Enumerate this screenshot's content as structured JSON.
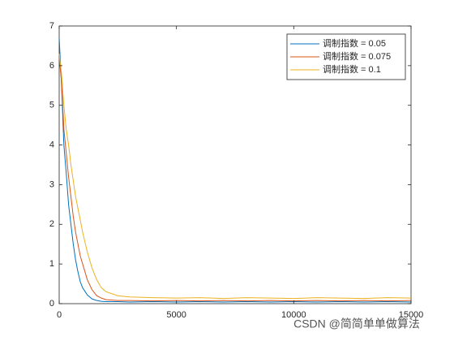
{
  "chart_data": {
    "type": "line",
    "x": [
      0,
      100,
      200,
      300,
      400,
      500,
      600,
      700,
      800,
      900,
      1000,
      1200,
      1400,
      1600,
      1800,
      2000,
      2500,
      3000,
      4000,
      5000,
      6000,
      7000,
      8000,
      9000,
      10000,
      11000,
      12000,
      13000,
      14000,
      15000
    ],
    "series": [
      {
        "name": "调制指数 = 0.05",
        "color": "#0072bd",
        "values": [
          6.7,
          5.5,
          4.0,
          3.3,
          2.5,
          2.0,
          1.5,
          1.1,
          0.8,
          0.55,
          0.4,
          0.22,
          0.12,
          0.08,
          0.06,
          0.05,
          0.05,
          0.04,
          0.05,
          0.04,
          0.05,
          0.04,
          0.05,
          0.04,
          0.05,
          0.04,
          0.05,
          0.04,
          0.05,
          0.04
        ]
      },
      {
        "name": "调制指数 = 0.075",
        "color": "#d95319",
        "values": [
          6.2,
          5.6,
          4.4,
          3.8,
          3.2,
          2.7,
          2.2,
          1.8,
          1.5,
          1.2,
          1.0,
          0.6,
          0.35,
          0.2,
          0.14,
          0.1,
          0.08,
          0.08,
          0.07,
          0.08,
          0.07,
          0.08,
          0.07,
          0.08,
          0.07,
          0.08,
          0.07,
          0.08,
          0.07,
          0.08
        ]
      },
      {
        "name": "调制指数 = 0.1",
        "color": "#edb120",
        "values": [
          6.3,
          5.8,
          5.0,
          4.4,
          4.0,
          3.5,
          3.1,
          2.7,
          2.4,
          2.1,
          1.8,
          1.3,
          0.9,
          0.6,
          0.4,
          0.3,
          0.2,
          0.17,
          0.15,
          0.14,
          0.15,
          0.13,
          0.15,
          0.14,
          0.13,
          0.15,
          0.14,
          0.13,
          0.15,
          0.14
        ]
      }
    ],
    "xlim": [
      0,
      15000
    ],
    "xticks": [
      0,
      5000,
      10000,
      15000
    ],
    "ylim": [
      0,
      7
    ],
    "yticks": [
      0,
      1,
      2,
      3,
      4,
      5,
      6,
      7
    ],
    "legend": "northeast"
  },
  "watermark": "CSDN @简简单单做算法"
}
